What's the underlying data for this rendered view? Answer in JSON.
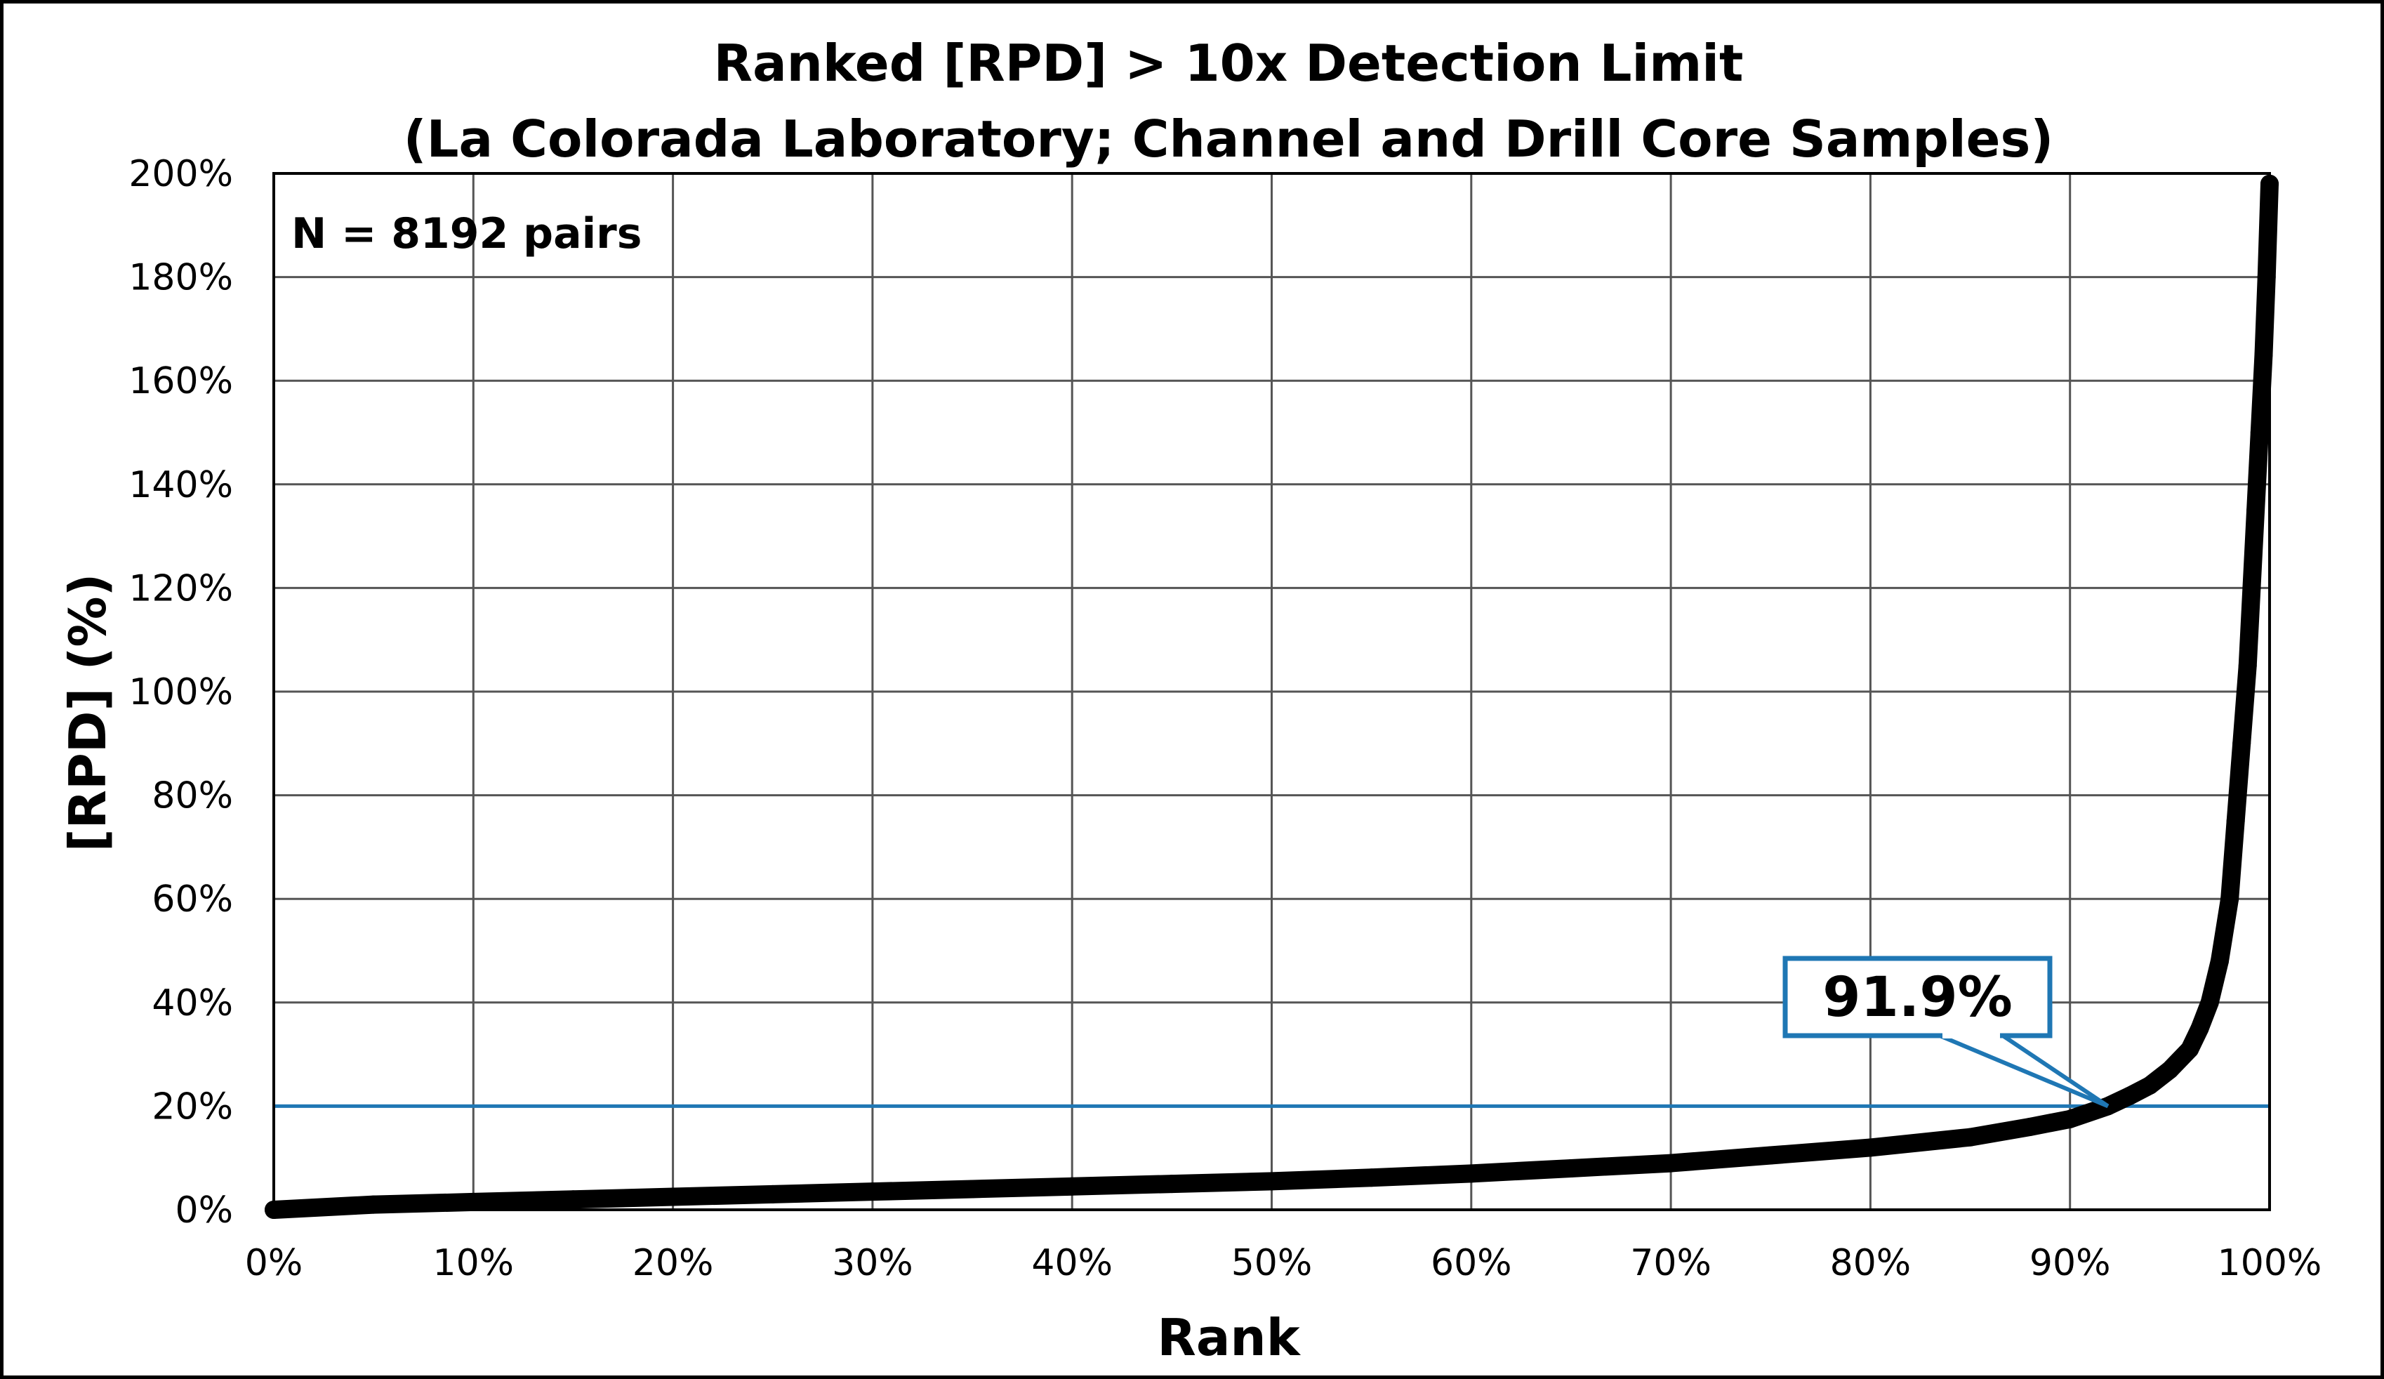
{
  "chart_data": {
    "type": "scatter",
    "title": "Ranked [RPD] > 10x Detection Limit",
    "subtitle": "(La Colorada Laboratory; Channel and Drill Core Samples)",
    "xlabel": "Rank",
    "ylabel": "[RPD] (%)",
    "xlim": [
      0,
      100
    ],
    "ylim": [
      0,
      200
    ],
    "x_ticks": [
      "0%",
      "10%",
      "20%",
      "30%",
      "40%",
      "50%",
      "60%",
      "70%",
      "80%",
      "90%",
      "100%"
    ],
    "y_ticks": [
      "0%",
      "20%",
      "40%",
      "60%",
      "80%",
      "100%",
      "120%",
      "140%",
      "160%",
      "180%",
      "200%"
    ],
    "grid": true,
    "annotation_n": "N = 8192 pairs",
    "threshold": {
      "y": 20,
      "color": "#1f77b4"
    },
    "callout": {
      "label": "91.9%",
      "x": 91.9,
      "y": 20,
      "color": "#1f77b4"
    },
    "series": [
      {
        "color": "#000000",
        "x": [
          0,
          5,
          10,
          15,
          20,
          25,
          30,
          35,
          40,
          45,
          50,
          55,
          60,
          65,
          70,
          75,
          80,
          85,
          88,
          90,
          91.9,
          93,
          94,
          95,
          96,
          96.5,
          97,
          97.5,
          98,
          98.3,
          98.6,
          98.9,
          99.1,
          99.3,
          99.5,
          99.7,
          99.85,
          100
        ],
        "y": [
          0,
          1,
          1.5,
          2,
          2.5,
          3,
          3.5,
          4,
          4.5,
          5,
          5.5,
          6.2,
          7,
          8,
          9,
          10.5,
          12,
          14,
          16,
          17.5,
          20,
          22,
          24,
          27,
          31,
          35,
          40,
          48,
          60,
          75,
          90,
          105,
          120,
          135,
          150,
          165,
          180,
          198
        ]
      }
    ]
  }
}
